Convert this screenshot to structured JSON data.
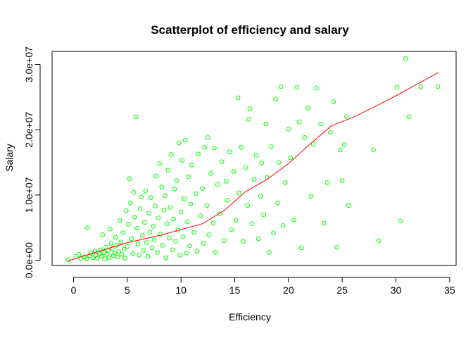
{
  "chart_data": {
    "type": "scatter",
    "title": "Scatterplot of efficiency and salary",
    "xlabel": "Efficiency",
    "ylabel": "Salary",
    "xlim": [
      -2.0,
      35.6
    ],
    "ylim": [
      -800000,
      32000000
    ],
    "xticks": [
      0,
      5,
      10,
      15,
      20,
      25,
      30,
      35
    ],
    "xtick_labels": [
      "0",
      "5",
      "10",
      "15",
      "20",
      "25",
      "30",
      "35"
    ],
    "yticks": [
      0,
      10000000,
      20000000,
      30000000
    ],
    "ytick_labels": [
      "0.0e+00",
      "1.0e+07",
      "2.0e+07",
      "3.0e+07"
    ],
    "grid": false,
    "point_color": "#00ff00",
    "line_color": "#ff0000",
    "points": [
      [
        -0.5,
        100000
      ],
      [
        0.2,
        600000
      ],
      [
        0.5,
        900000
      ],
      [
        0.7,
        300000
      ],
      [
        1.0,
        500000
      ],
      [
        1.2,
        200000
      ],
      [
        1.3,
        5000000
      ],
      [
        1.5,
        700000
      ],
      [
        1.6,
        1100000
      ],
      [
        1.8,
        400000
      ],
      [
        2.0,
        1400000
      ],
      [
        2.1,
        800000
      ],
      [
        2.2,
        300000
      ],
      [
        2.4,
        1000000
      ],
      [
        2.5,
        1600000
      ],
      [
        2.6,
        600000
      ],
      [
        2.7,
        3900000
      ],
      [
        2.8,
        1200000
      ],
      [
        2.9,
        200000
      ],
      [
        3.0,
        2000000
      ],
      [
        3.1,
        900000
      ],
      [
        3.2,
        1500000
      ],
      [
        3.3,
        400000
      ],
      [
        3.4,
        4800000
      ],
      [
        3.5,
        2600000
      ],
      [
        3.6,
        1800000
      ],
      [
        3.7,
        700000
      ],
      [
        3.8,
        1100000
      ],
      [
        3.9,
        3500000
      ],
      [
        4.0,
        2300000
      ],
      [
        4.1,
        500000
      ],
      [
        4.2,
        1300000
      ],
      [
        4.3,
        6100000
      ],
      [
        4.4,
        2800000
      ],
      [
        4.5,
        900000
      ],
      [
        4.6,
        4200000
      ],
      [
        4.7,
        1700000
      ],
      [
        4.8,
        300000
      ],
      [
        4.9,
        7600000
      ],
      [
        5.0,
        2100000
      ],
      [
        5.1,
        5500000
      ],
      [
        5.2,
        12500000
      ],
      [
        5.3,
        8800000
      ],
      [
        5.4,
        3300000
      ],
      [
        5.5,
        1000000
      ],
      [
        5.6,
        10400000
      ],
      [
        5.7,
        6600000
      ],
      [
        5.8,
        22000000
      ],
      [
        5.9,
        4900000
      ],
      [
        6.0,
        2500000
      ],
      [
        6.1,
        800000
      ],
      [
        6.2,
        7900000
      ],
      [
        6.3,
        9700000
      ],
      [
        6.4,
        3800000
      ],
      [
        6.5,
        1500000
      ],
      [
        6.6,
        5800000
      ],
      [
        6.7,
        10600000
      ],
      [
        6.8,
        2700000
      ],
      [
        6.9,
        600000
      ],
      [
        7.0,
        7200000
      ],
      [
        7.1,
        4300000
      ],
      [
        7.2,
        9600000
      ],
      [
        7.3,
        1900000
      ],
      [
        7.4,
        5200000
      ],
      [
        7.5,
        3100000
      ],
      [
        7.6,
        8300000
      ],
      [
        7.7,
        12900000
      ],
      [
        7.8,
        1200000
      ],
      [
        7.9,
        6500000
      ],
      [
        8.0,
        14800000
      ],
      [
        8.1,
        4000000
      ],
      [
        8.2,
        11200000
      ],
      [
        8.3,
        2300000
      ],
      [
        8.4,
        7700000
      ],
      [
        8.5,
        9900000
      ],
      [
        8.6,
        400000
      ],
      [
        8.7,
        5600000
      ],
      [
        8.8,
        13800000
      ],
      [
        8.9,
        3400000
      ],
      [
        9.0,
        8100000
      ],
      [
        9.1,
        16200000
      ],
      [
        9.2,
        1600000
      ],
      [
        9.3,
        6300000
      ],
      [
        9.4,
        10900000
      ],
      [
        9.5,
        2900000
      ],
      [
        9.6,
        12200000
      ],
      [
        9.7,
        4600000
      ],
      [
        9.8,
        18000000
      ],
      [
        9.9,
        800000
      ],
      [
        10.0,
        7400000
      ],
      [
        10.1,
        15300000
      ],
      [
        10.2,
        3600000
      ],
      [
        10.3,
        9400000
      ],
      [
        10.4,
        18400000
      ],
      [
        10.5,
        1100000
      ],
      [
        10.6,
        5900000
      ],
      [
        10.7,
        12800000
      ],
      [
        10.8,
        2200000
      ],
      [
        10.9,
        8600000
      ],
      [
        11.0,
        14600000
      ],
      [
        11.2,
        4300000
      ],
      [
        11.4,
        10200000
      ],
      [
        11.5,
        1400000
      ],
      [
        11.6,
        16300000
      ],
      [
        11.8,
        6800000
      ],
      [
        12.0,
        11000000
      ],
      [
        12.1,
        2600000
      ],
      [
        12.2,
        17300000
      ],
      [
        12.4,
        8400000
      ],
      [
        12.5,
        18800000
      ],
      [
        12.6,
        3900000
      ],
      [
        12.8,
        13300000
      ],
      [
        13.0,
        5700000
      ],
      [
        13.1,
        17200000
      ],
      [
        13.2,
        1200000
      ],
      [
        13.4,
        11600000
      ],
      [
        13.6,
        7100000
      ],
      [
        13.8,
        15100000
      ],
      [
        14.0,
        3000000
      ],
      [
        14.2,
        12100000
      ],
      [
        14.3,
        9200000
      ],
      [
        14.5,
        16600000
      ],
      [
        14.7,
        4700000
      ],
      [
        14.9,
        13600000
      ],
      [
        15.1,
        6100000
      ],
      [
        15.3,
        24900000
      ],
      [
        15.4,
        10300000
      ],
      [
        15.6,
        17300000
      ],
      [
        15.8,
        2900000
      ],
      [
        16.0,
        14200000
      ],
      [
        16.2,
        8400000
      ],
      [
        16.3,
        21600000
      ],
      [
        16.4,
        23200000
      ],
      [
        16.6,
        5600000
      ],
      [
        16.8,
        12400000
      ],
      [
        17.0,
        16100000
      ],
      [
        17.2,
        3300000
      ],
      [
        17.4,
        9800000
      ],
      [
        17.5,
        14900000
      ],
      [
        17.7,
        7000000
      ],
      [
        17.9,
        20900000
      ],
      [
        18.0,
        12700000
      ],
      [
        18.2,
        1200000
      ],
      [
        18.4,
        17400000
      ],
      [
        18.6,
        4200000
      ],
      [
        18.8,
        24700000
      ],
      [
        19.0,
        8800000
      ],
      [
        19.1,
        15000000
      ],
      [
        19.3,
        26600000
      ],
      [
        19.5,
        5300000
      ],
      [
        19.7,
        11900000
      ],
      [
        20.0,
        20100000
      ],
      [
        20.2,
        15700000
      ],
      [
        20.5,
        6200000
      ],
      [
        20.8,
        26500000
      ],
      [
        21.0,
        21200000
      ],
      [
        21.2,
        1900000
      ],
      [
        21.5,
        18800000
      ],
      [
        21.8,
        23300000
      ],
      [
        22.1,
        9800000
      ],
      [
        22.3,
        17800000
      ],
      [
        22.6,
        26400000
      ],
      [
        23.0,
        20900000
      ],
      [
        23.3,
        5700000
      ],
      [
        23.6,
        11900000
      ],
      [
        23.9,
        19600000
      ],
      [
        24.2,
        24300000
      ],
      [
        24.5,
        2000000
      ],
      [
        24.8,
        16900000
      ],
      [
        25.0,
        12200000
      ],
      [
        25.2,
        17700000
      ],
      [
        25.4,
        22000000
      ],
      [
        25.6,
        8400000
      ],
      [
        27.9,
        16900000
      ],
      [
        28.4,
        3000000
      ],
      [
        30.1,
        26500000
      ],
      [
        30.4,
        6000000
      ],
      [
        30.9,
        30900000
      ],
      [
        31.2,
        22000000
      ],
      [
        32.3,
        26600000
      ],
      [
        33.9,
        26600000
      ]
    ],
    "trend": [
      [
        -0.5,
        -100000
      ],
      [
        2,
        1200000
      ],
      [
        5,
        2700000
      ],
      [
        8,
        3800000
      ],
      [
        10,
        4700000
      ],
      [
        12,
        5600000
      ],
      [
        14,
        7600000
      ],
      [
        16,
        10500000
      ],
      [
        18,
        12400000
      ],
      [
        20,
        14800000
      ],
      [
        22,
        17800000
      ],
      [
        24,
        20600000
      ],
      [
        26,
        21900000
      ],
      [
        28,
        23500000
      ],
      [
        30,
        25200000
      ],
      [
        32,
        27000000
      ],
      [
        34,
        28800000
      ]
    ]
  }
}
